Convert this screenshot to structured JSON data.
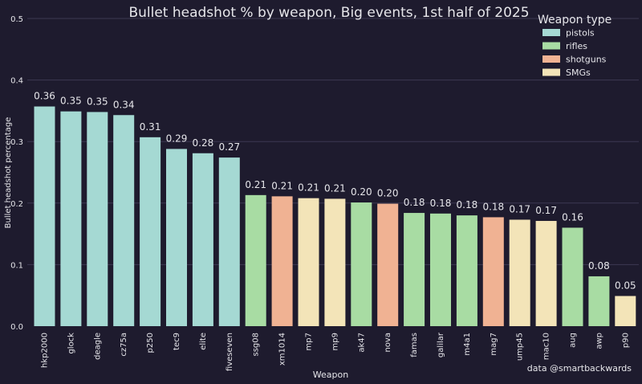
{
  "colors": {
    "background": "#1e1b2e",
    "grid": "#3c3952",
    "text": "#e6e6ea",
    "category": {
      "pistols": "#a5d9d3",
      "rifles": "#a8dca3",
      "shotguns": "#f0b293",
      "SMGs": "#f3e4b8"
    }
  },
  "chart_data": {
    "type": "bar",
    "title": "Bullet headshot % by weapon, Big events, 1st half of 2025",
    "xlabel": "Weapon",
    "ylabel": "Bullet headshot percentage",
    "ylim": [
      0,
      0.5
    ],
    "yticks": [
      "0.0",
      "0.1",
      "0.2",
      "0.3",
      "0.4",
      "0.5"
    ],
    "grid": true,
    "legend": {
      "title": "Weapon type",
      "placement": "top-right",
      "entries": [
        "pistols",
        "rifles",
        "shotguns",
        "SMGs"
      ]
    },
    "credit": "data @smartbackwards",
    "bars": [
      {
        "weapon": "hkp2000",
        "value": 0.357,
        "label": "0.36",
        "type": "pistols"
      },
      {
        "weapon": "glock",
        "value": 0.349,
        "label": "0.35",
        "type": "pistols"
      },
      {
        "weapon": "deagle",
        "value": 0.348,
        "label": "0.35",
        "type": "pistols"
      },
      {
        "weapon": "cz75a",
        "value": 0.343,
        "label": "0.34",
        "type": "pistols"
      },
      {
        "weapon": "p250",
        "value": 0.307,
        "label": "0.31",
        "type": "pistols"
      },
      {
        "weapon": "tec9",
        "value": 0.288,
        "label": "0.29",
        "type": "pistols"
      },
      {
        "weapon": "elite",
        "value": 0.281,
        "label": "0.28",
        "type": "pistols"
      },
      {
        "weapon": "fiveseven",
        "value": 0.274,
        "label": "0.27",
        "type": "pistols"
      },
      {
        "weapon": "ssg08",
        "value": 0.213,
        "label": "0.21",
        "type": "rifles"
      },
      {
        "weapon": "xm1014",
        "value": 0.211,
        "label": "0.21",
        "type": "shotguns"
      },
      {
        "weapon": "mp7",
        "value": 0.208,
        "label": "0.21",
        "type": "SMGs"
      },
      {
        "weapon": "mp9",
        "value": 0.207,
        "label": "0.21",
        "type": "SMGs"
      },
      {
        "weapon": "ak47",
        "value": 0.201,
        "label": "0.20",
        "type": "rifles"
      },
      {
        "weapon": "nova",
        "value": 0.199,
        "label": "0.20",
        "type": "shotguns"
      },
      {
        "weapon": "famas",
        "value": 0.184,
        "label": "0.18",
        "type": "rifles"
      },
      {
        "weapon": "galilar",
        "value": 0.183,
        "label": "0.18",
        "type": "rifles"
      },
      {
        "weapon": "m4a1",
        "value": 0.18,
        "label": "0.18",
        "type": "rifles"
      },
      {
        "weapon": "mag7",
        "value": 0.177,
        "label": "0.18",
        "type": "shotguns"
      },
      {
        "weapon": "ump45",
        "value": 0.173,
        "label": "0.17",
        "type": "SMGs"
      },
      {
        "weapon": "mac10",
        "value": 0.171,
        "label": "0.17",
        "type": "SMGs"
      },
      {
        "weapon": "aug",
        "value": 0.16,
        "label": "0.16",
        "type": "rifles"
      },
      {
        "weapon": "awp",
        "value": 0.081,
        "label": "0.08",
        "type": "rifles"
      },
      {
        "weapon": "p90",
        "value": 0.049,
        "label": "0.05",
        "type": "SMGs"
      }
    ]
  }
}
